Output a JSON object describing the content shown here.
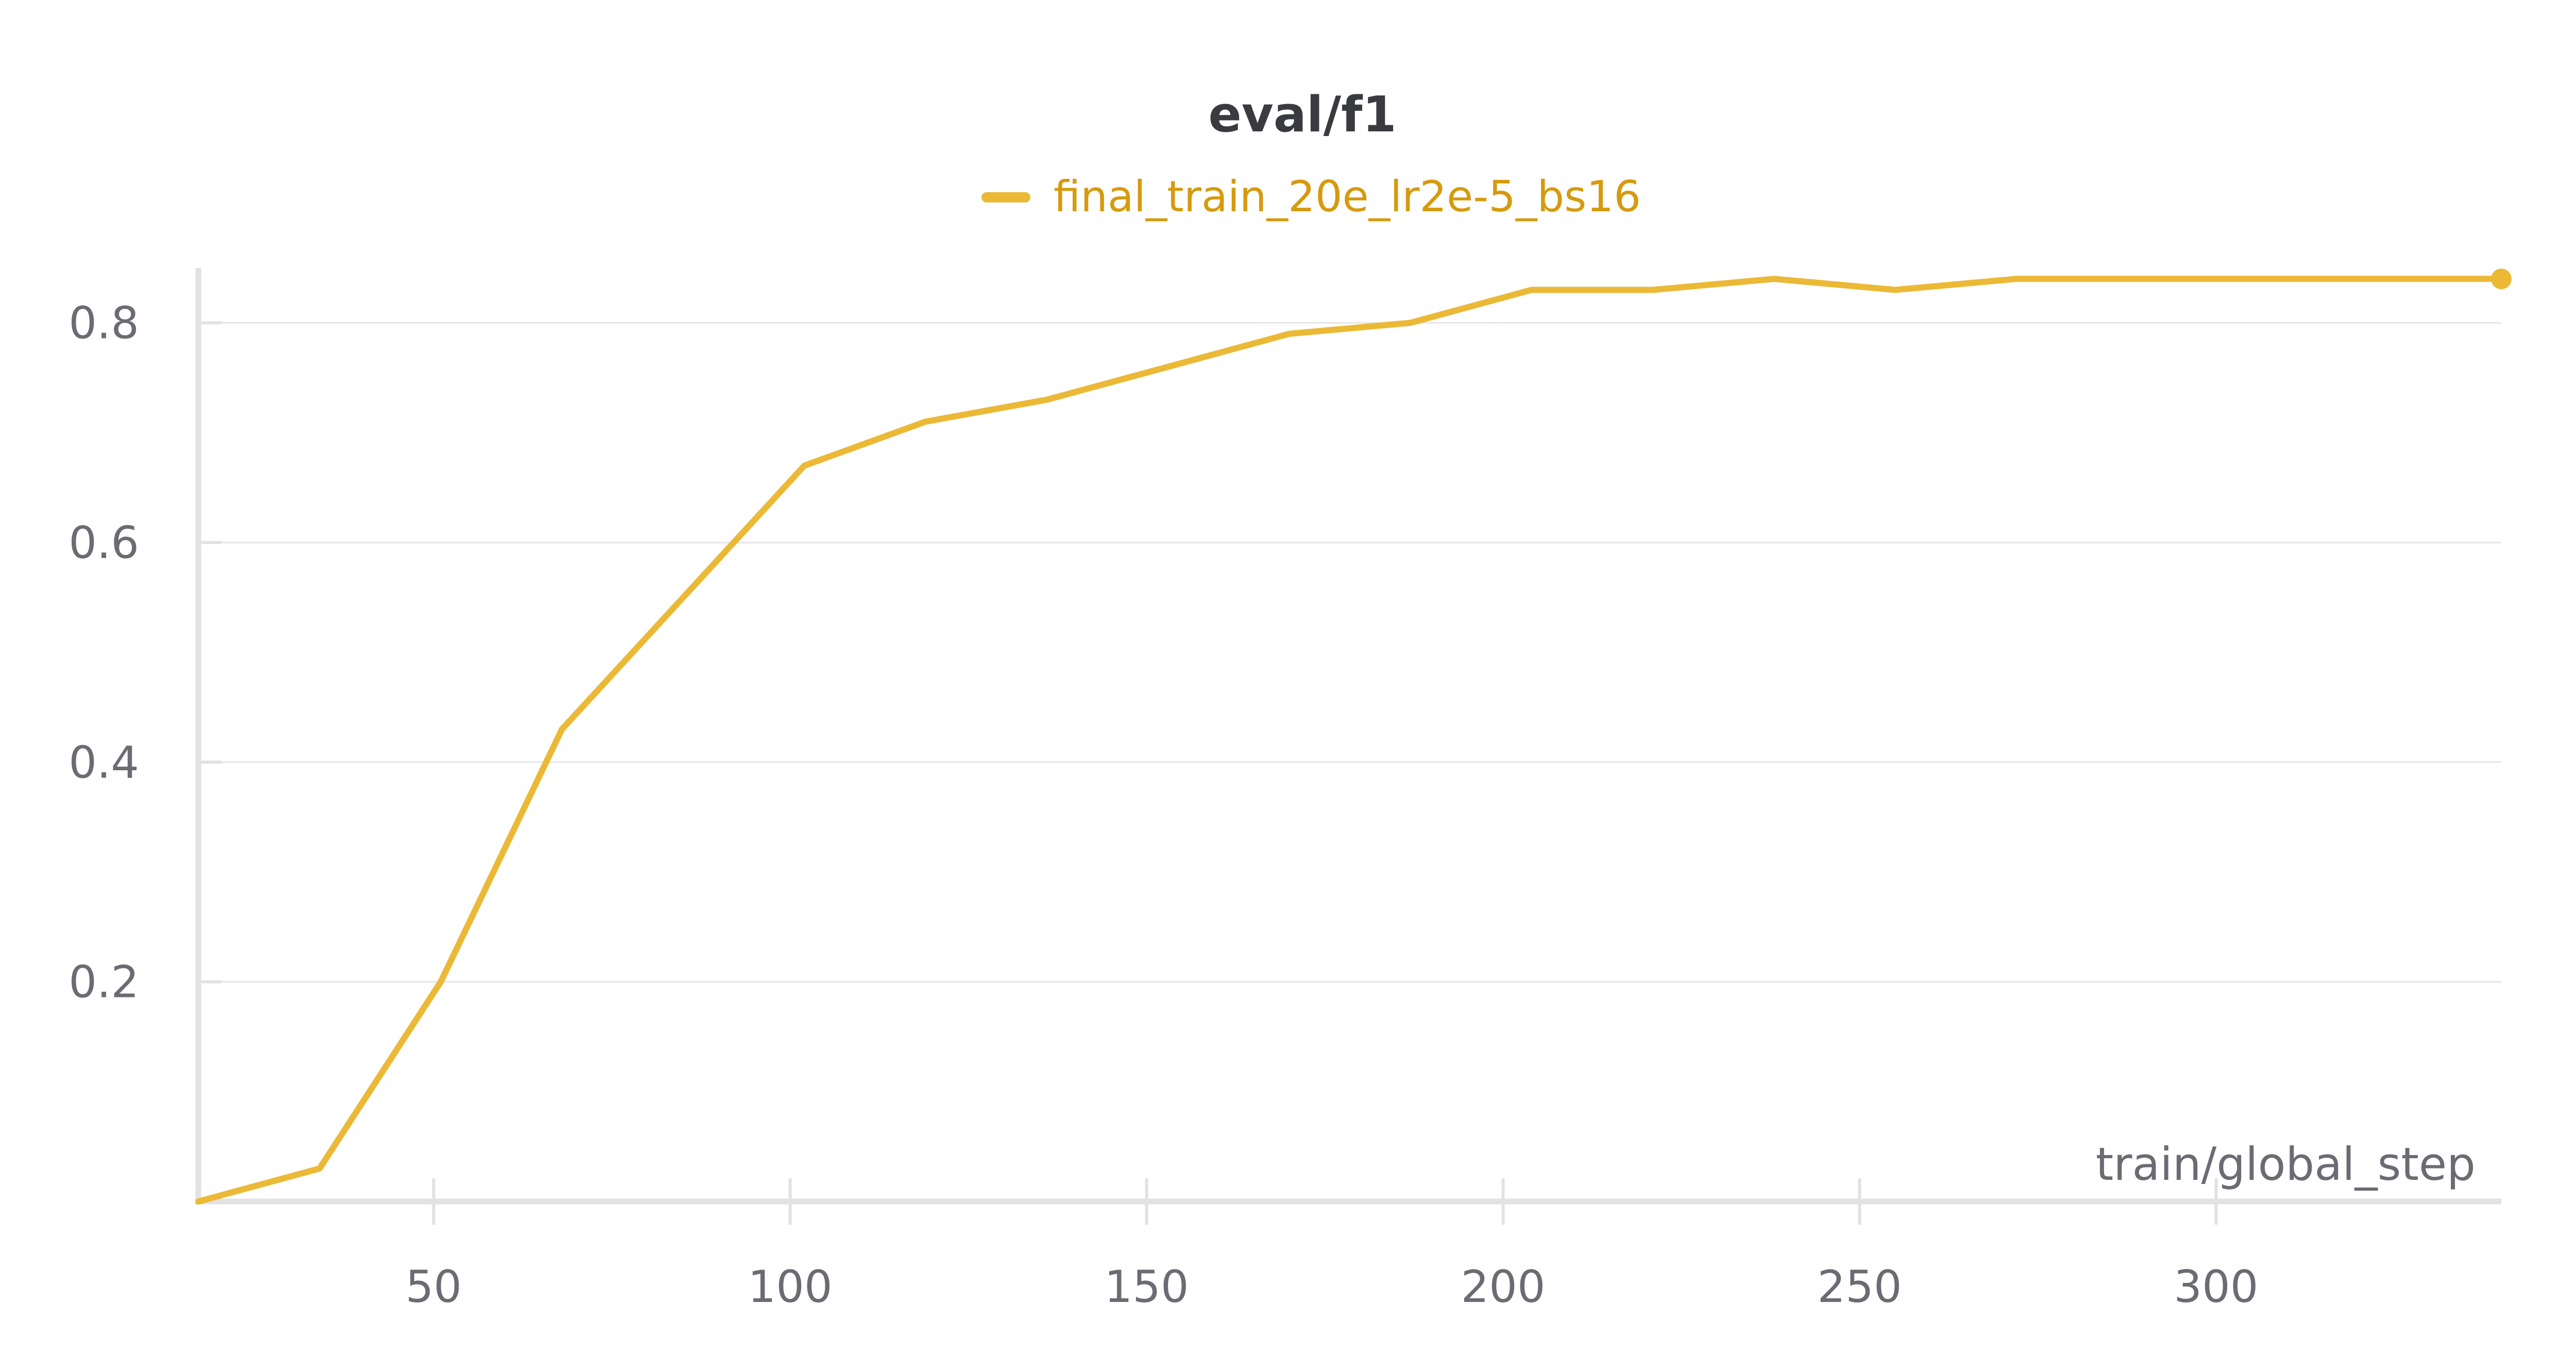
{
  "chart_data": {
    "type": "line",
    "title": "eval/f1",
    "xlabel": "train/global_step",
    "ylabel": "",
    "xlim": [
      17,
      340
    ],
    "ylim": [
      0.0,
      0.85
    ],
    "x_ticks": [
      50,
      100,
      150,
      200,
      250,
      300
    ],
    "x_tick_labels": [
      "50",
      "100",
      "150",
      "200",
      "250",
      "300"
    ],
    "y_ticks": [
      0.2,
      0.4,
      0.6,
      0.8
    ],
    "y_tick_labels": [
      "0.2",
      "0.4",
      "0.6",
      "0.8"
    ],
    "grid": true,
    "legend_position": "top-center",
    "series": [
      {
        "name": "final_train_20e_lr2e-5_bs16",
        "color": "#ebb936",
        "legend_text_color": "#d69a0e",
        "x": [
          17,
          34,
          51,
          68,
          85,
          102,
          119,
          136,
          153,
          170,
          187,
          204,
          221,
          238,
          255,
          272,
          289,
          306,
          323,
          340
        ],
        "y": [
          0.0,
          0.03,
          0.2,
          0.43,
          0.55,
          0.67,
          0.71,
          0.73,
          0.76,
          0.79,
          0.8,
          0.83,
          0.83,
          0.84,
          0.83,
          0.84,
          0.84,
          0.84,
          0.84,
          0.84
        ]
      }
    ]
  }
}
